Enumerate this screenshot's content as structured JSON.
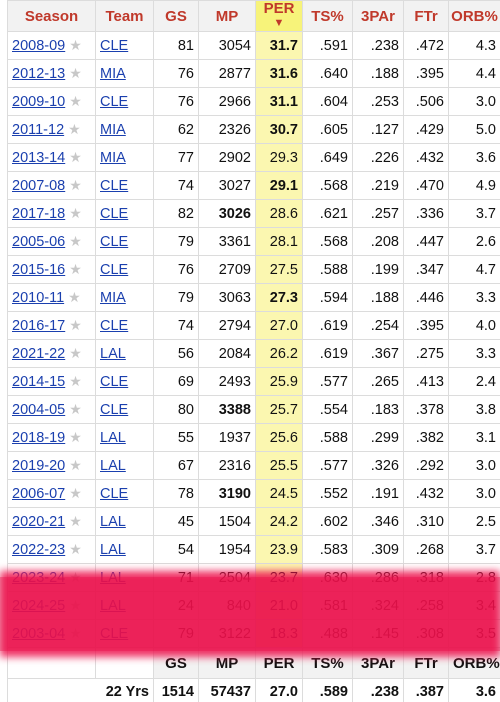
{
  "columns": [
    "Season",
    "Team",
    "GS",
    "MP",
    "PER",
    "TS%",
    "3PAr",
    "FTr",
    "ORB%"
  ],
  "per_sort_glyph": "▼",
  "star_glyph": "★",
  "rows": [
    {
      "season": "2008-09",
      "team": "CLE",
      "gs": "81",
      "mp": "3054",
      "per": "31.7",
      "ts": ".591",
      "tpar": ".238",
      "ftr": ".472",
      "orb": "4.3"
    },
    {
      "season": "2012-13",
      "team": "MIA",
      "gs": "76",
      "mp": "2877",
      "per": "31.6",
      "ts": ".640",
      "tpar": ".188",
      "ftr": ".395",
      "orb": "4.4"
    },
    {
      "season": "2009-10",
      "team": "CLE",
      "gs": "76",
      "mp": "2966",
      "per": "31.1",
      "ts": ".604",
      "tpar": ".253",
      "ftr": ".506",
      "orb": "3.0"
    },
    {
      "season": "2011-12",
      "team": "MIA",
      "gs": "62",
      "mp": "2326",
      "per": "30.7",
      "ts": ".605",
      "tpar": ".127",
      "ftr": ".429",
      "orb": "5.0"
    },
    {
      "season": "2013-14",
      "team": "MIA",
      "gs": "77",
      "mp": "2902",
      "per": "29.3",
      "ts": ".649",
      "tpar": ".226",
      "ftr": ".432",
      "orb": "3.6"
    },
    {
      "season": "2007-08",
      "team": "CLE",
      "gs": "74",
      "mp": "3027",
      "per": "29.1",
      "ts": ".568",
      "tpar": ".219",
      "ftr": ".470",
      "orb": "4.9"
    },
    {
      "season": "2017-18",
      "team": "CLE",
      "gs": "82",
      "mp": "3026",
      "per": "28.6",
      "ts": ".621",
      "tpar": ".257",
      "ftr": ".336",
      "orb": "3.7"
    },
    {
      "season": "2005-06",
      "team": "CLE",
      "gs": "79",
      "mp": "3361",
      "per": "28.1",
      "ts": ".568",
      "tpar": ".208",
      "ftr": ".447",
      "orb": "2.6"
    },
    {
      "season": "2015-16",
      "team": "CLE",
      "gs": "76",
      "mp": "2709",
      "per": "27.5",
      "ts": ".588",
      "tpar": ".199",
      "ftr": ".347",
      "orb": "4.7"
    },
    {
      "season": "2010-11",
      "team": "MIA",
      "gs": "79",
      "mp": "3063",
      "per": "27.3",
      "ts": ".594",
      "tpar": ".188",
      "ftr": ".446",
      "orb": "3.3"
    },
    {
      "season": "2016-17",
      "team": "CLE",
      "gs": "74",
      "mp": "2794",
      "per": "27.0",
      "ts": ".619",
      "tpar": ".254",
      "ftr": ".395",
      "orb": "4.0"
    },
    {
      "season": "2021-22",
      "team": "LAL",
      "gs": "56",
      "mp": "2084",
      "per": "26.2",
      "ts": ".619",
      "tpar": ".367",
      "ftr": ".275",
      "orb": "3.3"
    },
    {
      "season": "2014-15",
      "team": "CLE",
      "gs": "69",
      "mp": "2493",
      "per": "25.9",
      "ts": ".577",
      "tpar": ".265",
      "ftr": ".413",
      "orb": "2.4"
    },
    {
      "season": "2004-05",
      "team": "CLE",
      "gs": "80",
      "mp": "3388",
      "per": "25.7",
      "ts": ".554",
      "tpar": ".183",
      "ftr": ".378",
      "orb": "3.8"
    },
    {
      "season": "2018-19",
      "team": "LAL",
      "gs": "55",
      "mp": "1937",
      "per": "25.6",
      "ts": ".588",
      "tpar": ".299",
      "ftr": ".382",
      "orb": "3.1"
    },
    {
      "season": "2019-20",
      "team": "LAL",
      "gs": "67",
      "mp": "2316",
      "per": "25.5",
      "ts": ".577",
      "tpar": ".326",
      "ftr": ".292",
      "orb": "3.0"
    },
    {
      "season": "2006-07",
      "team": "CLE",
      "gs": "78",
      "mp": "3190",
      "per": "24.5",
      "ts": ".552",
      "tpar": ".191",
      "ftr": ".432",
      "orb": "3.0"
    },
    {
      "season": "2020-21",
      "team": "LAL",
      "gs": "45",
      "mp": "1504",
      "per": "24.2",
      "ts": ".602",
      "tpar": ".346",
      "ftr": ".310",
      "orb": "2.5"
    },
    {
      "season": "2022-23",
      "team": "LAL",
      "gs": "54",
      "mp": "1954",
      "per": "23.9",
      "ts": ".583",
      "tpar": ".309",
      "ftr": ".268",
      "orb": "3.7"
    },
    {
      "season": "2023-24",
      "team": "LAL",
      "gs": "71",
      "mp": "2504",
      "per": "23.7",
      "ts": ".630",
      "tpar": ".286",
      "ftr": ".318",
      "orb": "2.8"
    },
    {
      "season": "2024-25",
      "team": "LAL",
      "gs": "24",
      "mp": "840",
      "per": "21.0",
      "ts": ".581",
      "tpar": ".324",
      "ftr": ".258",
      "orb": "3.4"
    },
    {
      "season": "2003-04",
      "team": "CLE",
      "gs": "79",
      "mp": "3122",
      "per": "18.3",
      "ts": ".488",
      "tpar": ".145",
      "ftr": ".308",
      "orb": "3.5"
    }
  ],
  "bold_cells": [
    {
      "row": 0,
      "col": "per"
    },
    {
      "row": 1,
      "col": "per"
    },
    {
      "row": 2,
      "col": "per"
    },
    {
      "row": 3,
      "col": "per"
    },
    {
      "row": 5,
      "col": "per"
    },
    {
      "row": 6,
      "col": "mp"
    },
    {
      "row": 9,
      "col": "per"
    },
    {
      "row": 13,
      "col": "mp"
    },
    {
      "row": 16,
      "col": "mp"
    }
  ],
  "footer_header": [
    "GS",
    "MP",
    "PER",
    "TS%",
    "3PAr",
    "FTr",
    "ORB%"
  ],
  "totals": {
    "label": "22 Yrs",
    "gs": "1514",
    "mp": "57437",
    "per": "27.0",
    "ts": ".589",
    "tpar": ".238",
    "ftr": ".387",
    "orb": "3.6"
  },
  "highlight_color": "#e8144e"
}
